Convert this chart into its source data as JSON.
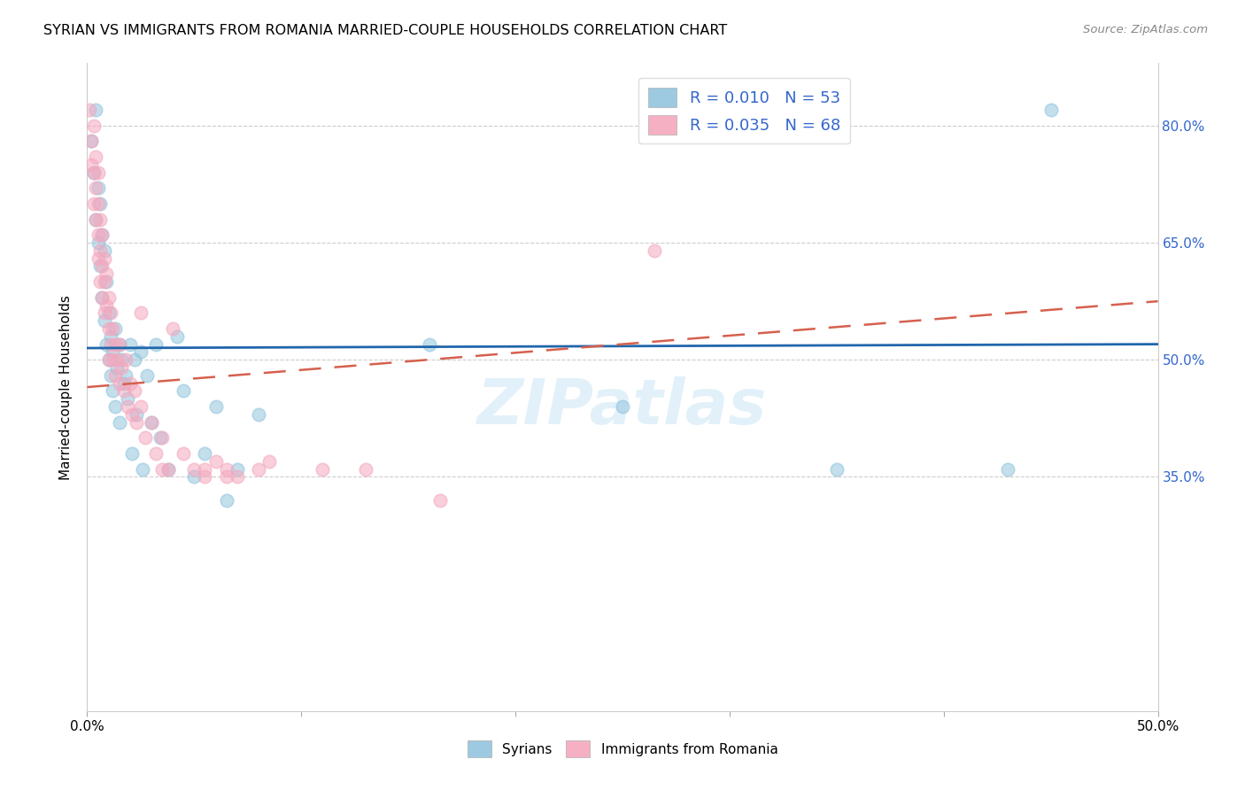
{
  "title": "SYRIAN VS IMMIGRANTS FROM ROMANIA MARRIED-COUPLE HOUSEHOLDS CORRELATION CHART",
  "source": "Source: ZipAtlas.com",
  "ylabel": "Married-couple Households",
  "xmin": 0.0,
  "xmax": 0.5,
  "ymin": 0.05,
  "ymax": 0.88,
  "watermark": "ZIPatlas",
  "legend_r1": "R = 0.010",
  "legend_n1": "N = 53",
  "legend_r2": "R = 0.035",
  "legend_n2": "N = 68",
  "blue_color": "#92c5de",
  "pink_color": "#f4a8be",
  "blue_line_color": "#2166ac",
  "pink_line_color": "#d6604d",
  "syrians_label": "Syrians",
  "romania_label": "Immigrants from Romania",
  "blue_line_y0": 0.515,
  "blue_line_y1": 0.52,
  "pink_line_y0": 0.465,
  "pink_line_y1": 0.575,
  "blue_x": [
    0.002,
    0.003,
    0.004,
    0.004,
    0.005,
    0.005,
    0.006,
    0.006,
    0.007,
    0.007,
    0.008,
    0.008,
    0.009,
    0.009,
    0.01,
    0.01,
    0.011,
    0.011,
    0.012,
    0.012,
    0.013,
    0.013,
    0.014,
    0.015,
    0.015,
    0.016,
    0.017,
    0.018,
    0.019,
    0.02,
    0.021,
    0.022,
    0.023,
    0.025,
    0.026,
    0.028,
    0.03,
    0.032,
    0.034,
    0.038,
    0.042,
    0.045,
    0.05,
    0.055,
    0.06,
    0.065,
    0.07,
    0.08,
    0.16,
    0.25,
    0.35,
    0.43,
    0.45
  ],
  "blue_y": [
    0.78,
    0.74,
    0.82,
    0.68,
    0.72,
    0.65,
    0.7,
    0.62,
    0.66,
    0.58,
    0.64,
    0.55,
    0.6,
    0.52,
    0.56,
    0.5,
    0.53,
    0.48,
    0.51,
    0.46,
    0.54,
    0.44,
    0.49,
    0.52,
    0.42,
    0.5,
    0.47,
    0.48,
    0.45,
    0.52,
    0.38,
    0.5,
    0.43,
    0.51,
    0.36,
    0.48,
    0.42,
    0.52,
    0.4,
    0.36,
    0.53,
    0.46,
    0.35,
    0.38,
    0.44,
    0.32,
    0.36,
    0.43,
    0.52,
    0.44,
    0.36,
    0.36,
    0.82
  ],
  "pink_x": [
    0.001,
    0.002,
    0.002,
    0.003,
    0.003,
    0.003,
    0.004,
    0.004,
    0.004,
    0.005,
    0.005,
    0.005,
    0.005,
    0.006,
    0.006,
    0.006,
    0.007,
    0.007,
    0.007,
    0.008,
    0.008,
    0.008,
    0.009,
    0.009,
    0.01,
    0.01,
    0.01,
    0.011,
    0.011,
    0.012,
    0.012,
    0.013,
    0.013,
    0.014,
    0.015,
    0.015,
    0.016,
    0.017,
    0.018,
    0.019,
    0.02,
    0.021,
    0.022,
    0.023,
    0.025,
    0.027,
    0.03,
    0.032,
    0.035,
    0.038,
    0.04,
    0.045,
    0.05,
    0.055,
    0.06,
    0.065,
    0.07,
    0.08,
    0.025,
    0.035,
    0.055,
    0.065,
    0.085,
    0.11,
    0.13,
    0.165,
    0.265,
    0.3
  ],
  "pink_y": [
    0.82,
    0.78,
    0.75,
    0.8,
    0.74,
    0.7,
    0.76,
    0.72,
    0.68,
    0.74,
    0.7,
    0.66,
    0.63,
    0.68,
    0.64,
    0.6,
    0.66,
    0.62,
    0.58,
    0.63,
    0.6,
    0.56,
    0.61,
    0.57,
    0.58,
    0.54,
    0.5,
    0.56,
    0.52,
    0.54,
    0.5,
    0.52,
    0.48,
    0.5,
    0.52,
    0.47,
    0.49,
    0.46,
    0.5,
    0.44,
    0.47,
    0.43,
    0.46,
    0.42,
    0.44,
    0.4,
    0.42,
    0.38,
    0.4,
    0.36,
    0.54,
    0.38,
    0.36,
    0.35,
    0.37,
    0.36,
    0.35,
    0.36,
    0.56,
    0.36,
    0.36,
    0.35,
    0.37,
    0.36,
    0.36,
    0.32,
    0.64,
    0.8
  ]
}
